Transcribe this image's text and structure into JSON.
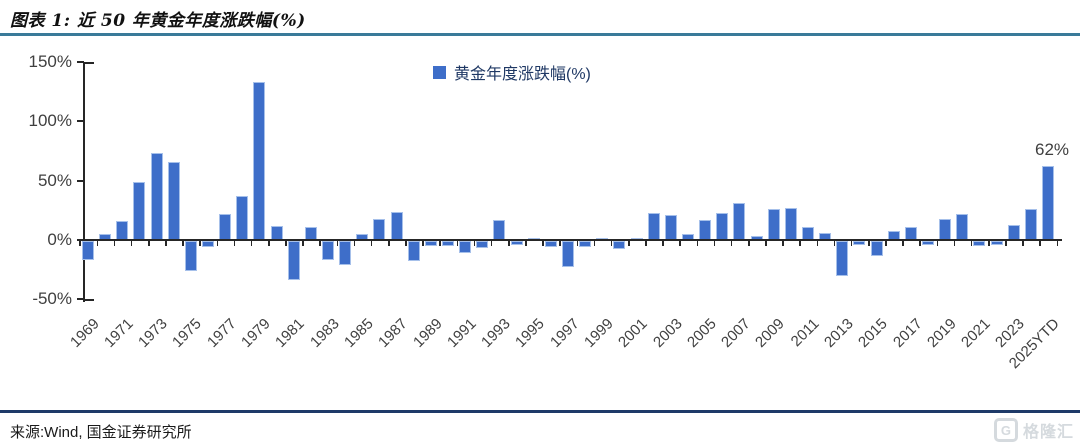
{
  "header": {
    "title": "图表 1: 近 50 年黄金年度涨跌幅(%)"
  },
  "legend": {
    "label": "黄金年度涨跌幅(%)"
  },
  "chart_data": {
    "type": "bar",
    "title": "近 50 年黄金年度涨跌幅(%)",
    "legend": [
      "黄金年度涨跌幅(%)"
    ],
    "legend_position": "top-center",
    "categories": [
      "1969",
      "1970",
      "1971",
      "1972",
      "1973",
      "1974",
      "1975",
      "1976",
      "1977",
      "1978",
      "1979",
      "1980",
      "1981",
      "1982",
      "1983",
      "1984",
      "1985",
      "1986",
      "1987",
      "1988",
      "1989",
      "1990",
      "1991",
      "1992",
      "1993",
      "1994",
      "1995",
      "1996",
      "1997",
      "1998",
      "1999",
      "2000",
      "2001",
      "2002",
      "2003",
      "2004",
      "2005",
      "2006",
      "2007",
      "2008",
      "2009",
      "2010",
      "2011",
      "2012",
      "2013",
      "2014",
      "2015",
      "2016",
      "2017",
      "2018",
      "2019",
      "2020",
      "2021",
      "2022",
      "2023",
      "2024",
      "2025YTD"
    ],
    "values": [
      -16,
      5,
      16,
      49,
      73,
      66,
      -25,
      -5,
      22,
      37,
      133,
      12,
      -33,
      11,
      -16,
      -20,
      5,
      18,
      24,
      -17,
      -4,
      -4,
      -10,
      -6,
      17,
      -3,
      2,
      -5,
      -22,
      -5,
      2,
      -7,
      2,
      23,
      21,
      5,
      17,
      23,
      31,
      3,
      26,
      27,
      11,
      6,
      -29,
      -3,
      -13,
      8,
      11,
      -3,
      18,
      22,
      -4,
      -3,
      13,
      26,
      62
    ],
    "ylabel": "",
    "xlabel": "",
    "ylim": [
      -50,
      150
    ],
    "yticks": [
      150,
      100,
      50,
      0,
      -50
    ],
    "ytick_format": "percent",
    "grid": false,
    "x_label_step": 2,
    "x_label_rotation": -45,
    "annotations": [
      {
        "text": "62%",
        "category": "2025YTD"
      }
    ]
  },
  "colors": {
    "bar": "#3e6ec9",
    "title_rule": "#3a7a99",
    "footer_rule": "#1e3a68",
    "axis": "#262626",
    "tick_label": "#3f3f3f"
  },
  "footer": {
    "source": "来源:Wind, 国金证券研究所",
    "logo_letter": "G",
    "logo_text": "格隆汇"
  }
}
